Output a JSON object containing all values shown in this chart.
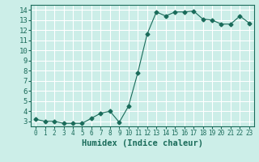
{
  "x": [
    0,
    1,
    2,
    3,
    4,
    5,
    6,
    7,
    8,
    9,
    10,
    11,
    12,
    13,
    14,
    15,
    16,
    17,
    18,
    19,
    20,
    21,
    22,
    23
  ],
  "y": [
    3.2,
    3.0,
    3.0,
    2.8,
    2.8,
    2.8,
    3.3,
    3.8,
    4.0,
    2.9,
    4.5,
    7.8,
    11.6,
    13.8,
    13.4,
    13.8,
    13.8,
    13.9,
    13.1,
    13.0,
    12.6,
    12.6,
    13.4,
    12.7
  ],
  "line_color": "#1a6b5a",
  "marker": "D",
  "marker_size": 2.5,
  "bg_color": "#cceee8",
  "grid_color": "#ffffff",
  "xlabel": "Humidex (Indice chaleur)",
  "xlabel_fontsize": 7.5,
  "ylim": [
    2.5,
    14.5
  ],
  "yticks": [
    3,
    4,
    5,
    6,
    7,
    8,
    9,
    10,
    11,
    12,
    13,
    14
  ],
  "xlim": [
    -0.5,
    23.5
  ]
}
